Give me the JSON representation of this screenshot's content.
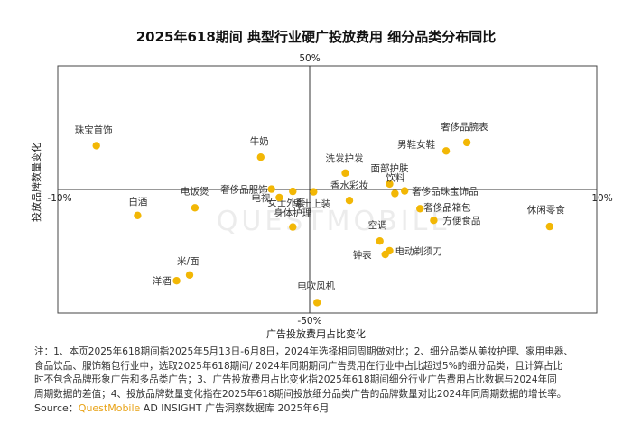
{
  "chart_data": {
    "type": "scatter",
    "title": "2025年618期间 典型行业硬广投放费用 细分品类分布同比",
    "xlabel": "广告投放费用占比变化",
    "ylabel": "投放品牌数量变化",
    "xlim": [
      -0.1,
      0.1
    ],
    "ylim": [
      -0.5,
      0.5
    ],
    "x_tick_labels": {
      "min": "-10%",
      "max": "10%"
    },
    "y_tick_labels": {
      "min": "-50%",
      "max": "50%"
    },
    "grid": false,
    "points": [
      {
        "label": "珠宝首饰",
        "x": -0.0857,
        "y": 0.1775
      },
      {
        "label": "牛奶",
        "x": -0.0247,
        "y": 0.1307
      },
      {
        "label": "奢侈品服饰",
        "x": -0.0207,
        "y": 0.0014
      },
      {
        "label": "女士外套",
        "x": -0.0128,
        "y": -0.0076
      },
      {
        "label": "电视",
        "x": -0.0178,
        "y": -0.0328
      },
      {
        "label": "男士上装",
        "x": -0.0051,
        "y": -0.0094
      },
      {
        "label": "电饭煲",
        "x": -0.0491,
        "y": -0.0742
      },
      {
        "label": "白酒",
        "x": -0.0704,
        "y": -0.105
      },
      {
        "label": "身体护理",
        "x": -0.0128,
        "y": -0.1518
      },
      {
        "label": "米/面",
        "x": -0.0511,
        "y": -0.346
      },
      {
        "label": "洋酒",
        "x": -0.0559,
        "y": -0.3694
      },
      {
        "label": "电吹风机",
        "x": -0.0038,
        "y": -0.4576
      },
      {
        "label": "洗发护发",
        "x": 0.0067,
        "y": 0.0665
      },
      {
        "label": "面部护肤",
        "x": 0.0231,
        "y": 0.0223
      },
      {
        "label": "奢侈品腕表",
        "x": 0.0518,
        "y": 0.1901
      },
      {
        "label": "男鞋女鞋",
        "x": 0.0441,
        "y": 0.1559
      },
      {
        "label": "香水彩妆",
        "x": 0.0082,
        "y": -0.0445
      },
      {
        "label": "奢侈品珠宝饰品",
        "x": 0.0287,
        "y": -0.0058
      },
      {
        "label": "奢侈品箱包",
        "x": 0.0344,
        "y": -0.0778
      },
      {
        "label": "饮料",
        "x": 0.0251,
        "y": -0.0166
      },
      {
        "label": "方便食品",
        "x": 0.0395,
        "y": -0.1247
      },
      {
        "label": "休闲零食",
        "x": 0.0825,
        "y": -0.1499
      },
      {
        "label": "空调",
        "x": 0.0195,
        "y": -0.2086
      },
      {
        "label": "钟表",
        "x": 0.0215,
        "y": -0.2627
      },
      {
        "label": "电动剃须刀",
        "x": 0.0231,
        "y": -0.2482
      }
    ]
  },
  "notes": [
    "注：1、本页2025年618期间指2025年5月13日-6月8日，2024年选择相同周期做对比；2、细分品类从美妆护理、家用电器、",
    "食品饮品、服饰箱包行业中，选取2025年618期间/ 2024年同期期间广告费用在行业中占比超过5%的细分品类，且计算占比",
    "时不包含品牌形象广告和多品类广告；3、广告投放费用占比变化指2025年618期间细分行业广告费用占比数据与2024年同",
    "周期数据的差值；4、投放品牌数量变化指在2025年618期间投放细分品类广告的品牌数量对比2024年同周期数据的增长率。"
  ],
  "source": {
    "prefix": "Source：",
    "brand": "QuestMobile",
    "rest": " AD INSIGHT 广告洞察数据库 2025年6月"
  },
  "watermark": "QUESTMOBILE",
  "colors": {
    "point": "#f2b705",
    "axis": "#333333",
    "frame": "#444444",
    "brand": "#e8a317"
  }
}
